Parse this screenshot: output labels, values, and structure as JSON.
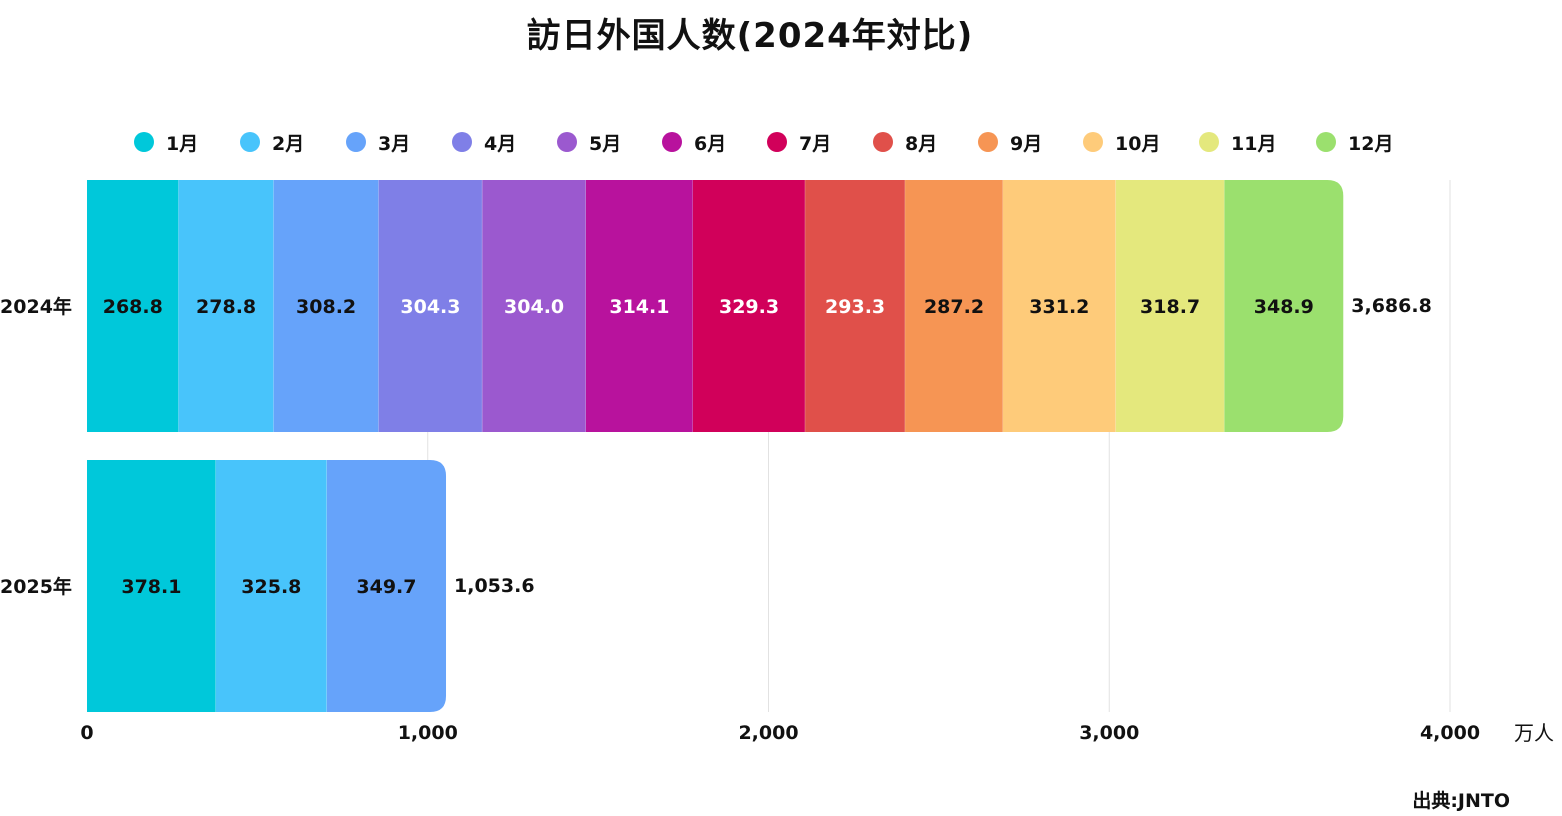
{
  "chart_data": {
    "type": "bar",
    "orientation": "horizontal",
    "stacked": true,
    "title": "訪日外国人数(2024年対比)",
    "unit": "万人",
    "source": "出典:JNTO",
    "categories": [
      "2024年",
      "2025年"
    ],
    "totals": [
      "3,686.8",
      "1,053.6"
    ],
    "xlim": [
      0,
      4000
    ],
    "xticks": [
      0,
      1000,
      2000,
      3000,
      4000
    ],
    "xtick_labels": [
      "0",
      "1,000",
      "2,000",
      "3,000",
      "4,000"
    ],
    "grid": true,
    "legend_position": "top",
    "series": [
      {
        "name": "1月",
        "color": "#00c8da",
        "label_color": "#111111",
        "values": [
          268.8,
          378.1
        ]
      },
      {
        "name": "2月",
        "color": "#48c4fb",
        "label_color": "#111111",
        "values": [
          278.8,
          325.8
        ]
      },
      {
        "name": "3月",
        "color": "#66a3fa",
        "label_color": "#111111",
        "values": [
          308.2,
          349.7
        ]
      },
      {
        "name": "4月",
        "color": "#7f7fe7",
        "label_color": "#ffffff",
        "values": [
          304.3,
          null
        ]
      },
      {
        "name": "5月",
        "color": "#9b59cf",
        "label_color": "#ffffff",
        "values": [
          304.0,
          null
        ]
      },
      {
        "name": "6月",
        "color": "#b8129d",
        "label_color": "#ffffff",
        "values": [
          314.1,
          null
        ]
      },
      {
        "name": "7月",
        "color": "#d1005a",
        "label_color": "#ffffff",
        "values": [
          329.3,
          null
        ]
      },
      {
        "name": "8月",
        "color": "#e0504a",
        "label_color": "#ffffff",
        "values": [
          293.3,
          null
        ]
      },
      {
        "name": "9月",
        "color": "#f69554",
        "label_color": "#111111",
        "values": [
          287.2,
          null
        ]
      },
      {
        "name": "10月",
        "color": "#fecb7a",
        "label_color": "#111111",
        "values": [
          331.2,
          null
        ]
      },
      {
        "name": "11月",
        "color": "#e4e87d",
        "label_color": "#111111",
        "values": [
          318.7,
          null
        ]
      },
      {
        "name": "12月",
        "color": "#9be06e",
        "label_color": "#111111",
        "values": [
          348.9,
          null
        ]
      }
    ]
  }
}
